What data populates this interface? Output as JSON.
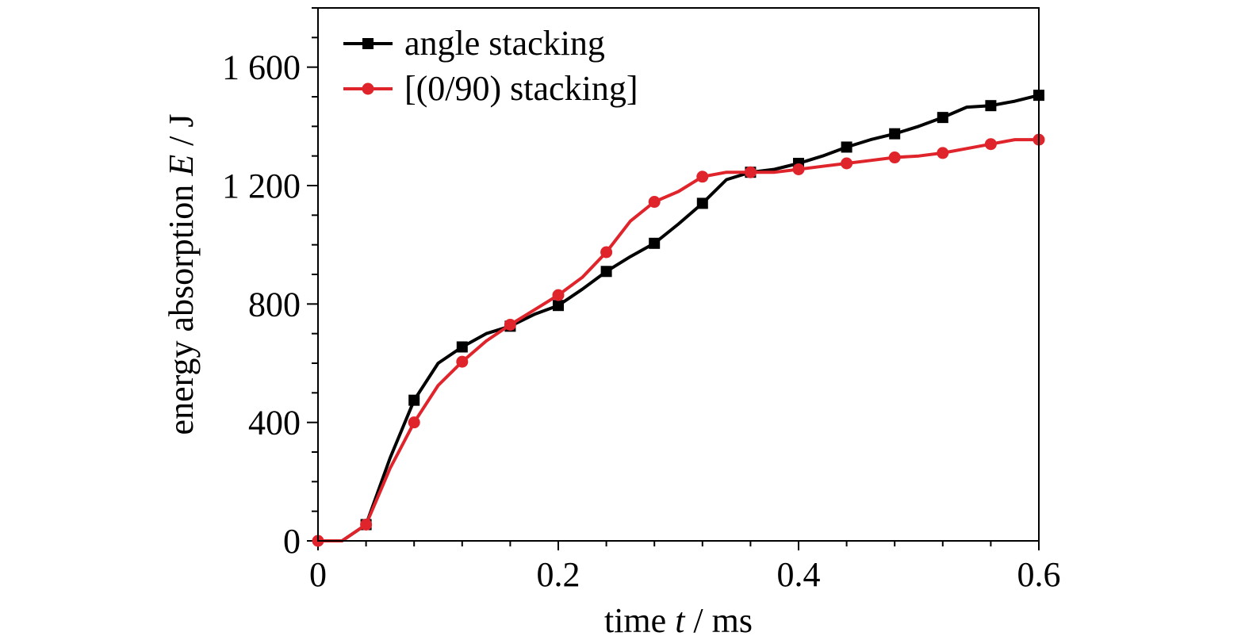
{
  "chart_data": {
    "type": "line",
    "xlabel": {
      "prefix": "time ",
      "italic": "t",
      "suffix": " / ms"
    },
    "ylabel": {
      "prefix": "energy absorption ",
      "italic": "E",
      "suffix": " / J"
    },
    "xlim": [
      0,
      0.6
    ],
    "ylim": [
      0,
      1800
    ],
    "xticks": [
      0,
      0.2,
      0.4,
      0.6
    ],
    "xtick_labels": [
      "0",
      "0.2",
      "0.4",
      "0.6"
    ],
    "yticks": [
      0,
      400,
      800,
      1200,
      1600
    ],
    "ytick_labels": [
      "0",
      "400",
      "800",
      "1 200",
      "1 600"
    ],
    "x_minor_step": 0.04,
    "y_minor_step": 100,
    "grid": false,
    "legend_position": "top-left",
    "series": [
      {
        "name": "angle stacking",
        "color": "#000000",
        "marker": "square",
        "x": [
          0,
          0.02,
          0.04,
          0.06,
          0.08,
          0.1,
          0.12,
          0.14,
          0.16,
          0.18,
          0.2,
          0.22,
          0.24,
          0.26,
          0.28,
          0.3,
          0.32,
          0.34,
          0.36,
          0.38,
          0.4,
          0.42,
          0.44,
          0.46,
          0.48,
          0.5,
          0.52,
          0.54,
          0.56,
          0.58,
          0.6
        ],
        "y": [
          0,
          0,
          55,
          280,
          475,
          600,
          655,
          700,
          725,
          765,
          795,
          850,
          910,
          960,
          1005,
          1070,
          1140,
          1220,
          1245,
          1255,
          1275,
          1300,
          1330,
          1355,
          1375,
          1400,
          1430,
          1465,
          1470,
          1485,
          1505
        ],
        "markers": [
          0.04,
          0.08,
          0.12,
          0.16,
          0.2,
          0.24,
          0.28,
          0.32,
          0.36,
          0.4,
          0.44,
          0.48,
          0.52,
          0.56,
          0.6
        ]
      },
      {
        "name": "[(0/90) stacking]",
        "color": "#e0242b",
        "marker": "circle",
        "x": [
          0,
          0.02,
          0.04,
          0.06,
          0.08,
          0.1,
          0.12,
          0.14,
          0.16,
          0.18,
          0.2,
          0.22,
          0.24,
          0.26,
          0.28,
          0.3,
          0.32,
          0.34,
          0.36,
          0.38,
          0.4,
          0.42,
          0.44,
          0.46,
          0.48,
          0.5,
          0.52,
          0.54,
          0.56,
          0.58,
          0.6
        ],
        "y": [
          0,
          0,
          55,
          245,
          400,
          525,
          605,
          675,
          730,
          780,
          830,
          890,
          975,
          1080,
          1145,
          1180,
          1230,
          1245,
          1245,
          1245,
          1255,
          1265,
          1275,
          1285,
          1295,
          1300,
          1310,
          1325,
          1340,
          1355,
          1355
        ],
        "markers": [
          0,
          0.04,
          0.08,
          0.12,
          0.16,
          0.2,
          0.24,
          0.28,
          0.32,
          0.36,
          0.4,
          0.44,
          0.48,
          0.52,
          0.56,
          0.6
        ]
      }
    ]
  }
}
